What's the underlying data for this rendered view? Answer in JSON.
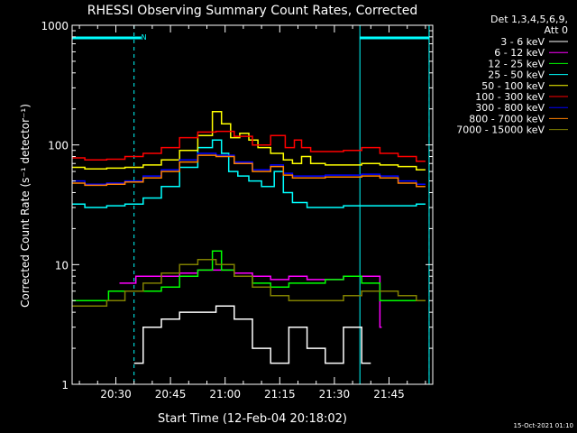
{
  "chart_data": {
    "type": "line",
    "title": "RHESSI Observing Summary Count Rates, Corrected",
    "xlabel": "Start Time (12-Feb-04 20:18:02)",
    "ylabel": "Corrected Count Rate (s⁻¹ detector⁻¹)",
    "y_scale": "log",
    "ylim": [
      1,
      1000
    ],
    "xlim": [
      "20:18",
      "21:57"
    ],
    "x_ticks": [
      "20:30",
      "20:45",
      "21:00",
      "21:15",
      "21:30",
      "21:45"
    ],
    "y_ticks": [
      "1",
      "10",
      "100",
      "1000"
    ],
    "legend_header": [
      "Det 1,3,4,5,6,9,",
      "Att 0"
    ],
    "legend_position": "top-right",
    "footer_date": "15-Oct-2021 01:10",
    "flag_label": "N",
    "markers": {
      "solid": [
        "20:18",
        "21:37",
        "21:56"
      ],
      "dashed": [
        "20:35",
        "21:56"
      ],
      "flag_bars": [
        [
          "20:18",
          "20:37"
        ],
        [
          "21:37",
          "21:56"
        ]
      ]
    },
    "series": [
      {
        "name": "3 - 6 keV",
        "color": "#ffffff",
        "x": [
          "20:35",
          "20:40",
          "20:45",
          "20:50",
          "20:55",
          "21:00",
          "21:05",
          "21:10",
          "21:15",
          "21:20",
          "21:25",
          "21:30",
          "21:35",
          "21:40"
        ],
        "y": [
          1.5,
          3,
          3.5,
          4,
          4,
          4.5,
          3.5,
          2,
          1.5,
          3,
          2,
          1.5,
          3,
          1.5
        ]
      },
      {
        "name": "6 - 12 keV",
        "color": "#ff00ff",
        "x": [
          "20:31",
          "20:40",
          "20:45",
          "20:50",
          "20:55",
          "21:00",
          "21:05",
          "21:10",
          "21:15",
          "21:20",
          "21:25",
          "21:30",
          "21:35",
          "21:42",
          "21:43"
        ],
        "y": [
          7,
          8,
          8,
          8.5,
          9,
          9,
          8.5,
          8,
          7.5,
          8,
          7.5,
          7.5,
          8,
          8,
          3
        ]
      },
      {
        "name": "12 - 25 keV",
        "color": "#00ff00",
        "x": [
          "20:18",
          "20:25",
          "20:31",
          "20:40",
          "20:45",
          "20:50",
          "20:55",
          "20:58",
          "21:00",
          "21:05",
          "21:10",
          "21:15",
          "21:20",
          "21:25",
          "21:30",
          "21:35",
          "21:40",
          "21:45",
          "21:50",
          "21:55"
        ],
        "y": [
          5,
          5,
          6,
          6,
          6.5,
          8,
          9,
          13,
          9,
          8,
          7,
          6.5,
          7,
          7,
          7.5,
          8,
          7,
          5,
          5,
          5
        ]
      },
      {
        "name": "25 - 50 keV",
        "color": "#00ffff",
        "x": [
          "20:18",
          "20:25",
          "20:30",
          "20:35",
          "20:40",
          "20:45",
          "20:50",
          "20:55",
          "20:58",
          "21:00",
          "21:02",
          "21:05",
          "21:08",
          "21:12",
          "21:15",
          "21:17",
          "21:20",
          "21:25",
          "21:30",
          "21:35",
          "21:40",
          "21:45",
          "21:50",
          "21:55"
        ],
        "y": [
          32,
          30,
          31,
          32,
          36,
          45,
          65,
          95,
          110,
          85,
          60,
          55,
          50,
          45,
          60,
          40,
          33,
          30,
          30,
          31,
          31,
          31,
          31,
          32
        ]
      },
      {
        "name": "50 - 100 keV",
        "color": "#ffff00",
        "x": [
          "20:18",
          "20:25",
          "20:30",
          "20:35",
          "20:40",
          "20:45",
          "20:50",
          "20:55",
          "20:58",
          "21:00",
          "21:03",
          "21:05",
          "21:08",
          "21:10",
          "21:15",
          "21:17",
          "21:20",
          "21:22",
          "21:25",
          "21:30",
          "21:35",
          "21:40",
          "21:45",
          "21:50",
          "21:55"
        ],
        "y": [
          65,
          63,
          64,
          65,
          68,
          75,
          90,
          120,
          190,
          150,
          115,
          125,
          110,
          95,
          85,
          75,
          70,
          80,
          70,
          68,
          68,
          70,
          68,
          66,
          62
        ]
      },
      {
        "name": "100 - 300 keV",
        "color": "#ff0000",
        "x": [
          "20:18",
          "20:25",
          "20:30",
          "20:35",
          "20:40",
          "20:45",
          "20:50",
          "20:55",
          "21:00",
          "21:05",
          "21:10",
          "21:15",
          "21:18",
          "21:20",
          "21:22",
          "21:25",
          "21:30",
          "21:35",
          "21:40",
          "21:45",
          "21:50",
          "21:55"
        ],
        "y": [
          78,
          75,
          76,
          80,
          85,
          95,
          115,
          128,
          130,
          118,
          100,
          120,
          95,
          110,
          95,
          88,
          88,
          90,
          95,
          85,
          80,
          73
        ]
      },
      {
        "name": "300 - 800 keV",
        "color": "#0000ff",
        "x": [
          "20:18",
          "20:25",
          "20:30",
          "20:35",
          "20:40",
          "20:45",
          "20:50",
          "20:55",
          "21:00",
          "21:05",
          "21:10",
          "21:15",
          "21:17",
          "21:20",
          "21:25",
          "21:30",
          "21:35",
          "21:40",
          "21:45",
          "21:50",
          "21:55"
        ],
        "y": [
          50,
          47,
          48,
          50,
          55,
          62,
          75,
          85,
          82,
          72,
          62,
          68,
          58,
          55,
          55,
          56,
          56,
          57,
          55,
          50,
          47
        ]
      },
      {
        "name": "800 - 7000 keV",
        "color": "#ff8000",
        "x": [
          "20:18",
          "20:25",
          "20:30",
          "20:35",
          "20:40",
          "20:45",
          "20:50",
          "20:55",
          "21:00",
          "21:05",
          "21:10",
          "21:15",
          "21:17",
          "21:20",
          "21:25",
          "21:30",
          "21:35",
          "21:40",
          "21:45",
          "21:50",
          "21:55"
        ],
        "y": [
          48,
          46,
          47,
          49,
          53,
          60,
          72,
          82,
          80,
          70,
          60,
          66,
          56,
          53,
          53,
          54,
          54,
          55,
          53,
          48,
          45
        ]
      },
      {
        "name": "7000 - 15000 keV",
        "color": "#808000",
        "x": [
          "20:18",
          "20:25",
          "20:30",
          "20:35",
          "20:40",
          "20:45",
          "20:50",
          "20:55",
          "21:00",
          "21:05",
          "21:10",
          "21:15",
          "21:20",
          "21:25",
          "21:30",
          "21:35",
          "21:40",
          "21:45",
          "21:50",
          "21:55"
        ],
        "y": [
          4.5,
          4.5,
          5,
          6,
          7,
          8.5,
          10,
          11,
          10,
          8,
          6.5,
          5.5,
          5,
          5,
          5,
          5.5,
          6,
          6,
          5.5,
          5
        ]
      }
    ]
  }
}
